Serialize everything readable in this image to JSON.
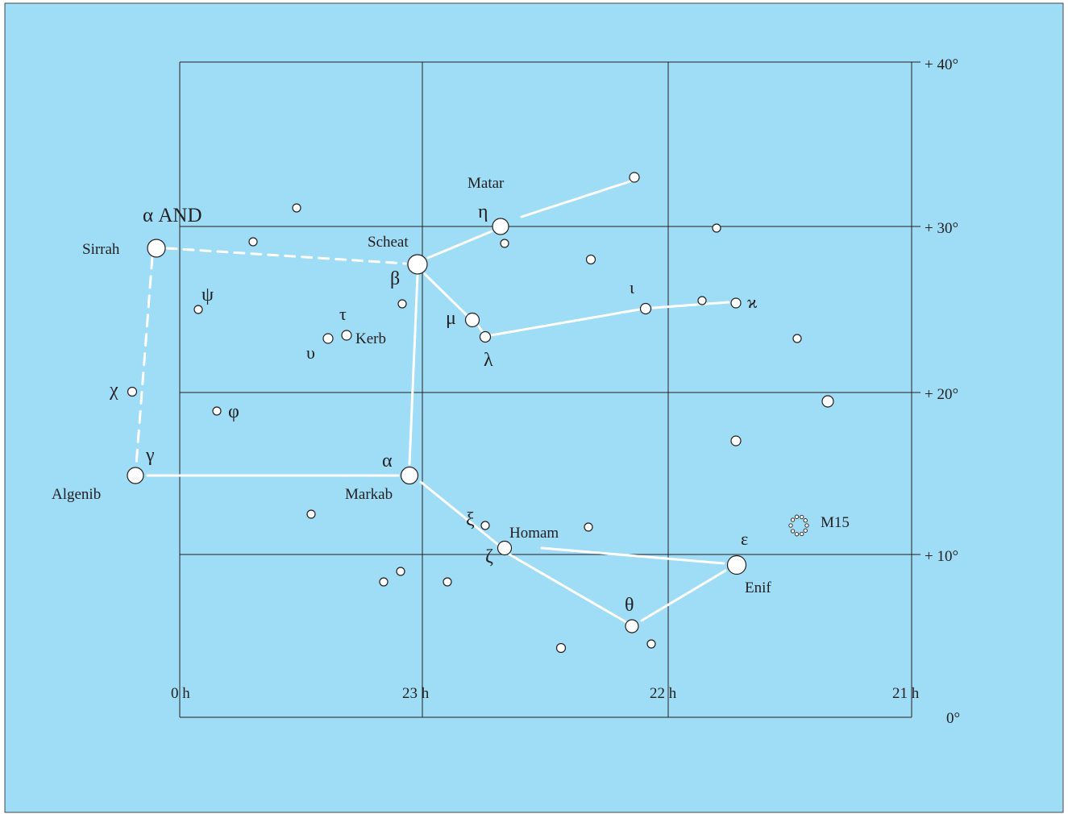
{
  "colors": {
    "sky": "#9fdcf5",
    "grid": "#231f20",
    "line": "#ffffff",
    "star_fill": "#ffffff",
    "star_stroke": "#231f20"
  },
  "axes": {
    "ra_labels": [
      "0 h",
      "23 h",
      "22 h",
      "21 h"
    ],
    "dec_labels": [
      "+ 40°",
      "+ 30°",
      "+ 20°",
      "+ 10°",
      "0°"
    ]
  },
  "labels": {
    "alpha_and": "α AND",
    "sirrah": "Sirrah",
    "scheat": "Scheat",
    "matar": "Matar",
    "eta": "η",
    "beta": "β",
    "psi": "ψ",
    "tau": "τ",
    "kerb": "Kerb",
    "upsilon": "υ",
    "mu": "μ",
    "lambda": "λ",
    "iota": "ι",
    "kappa": "ϰ",
    "chi": "χ",
    "phi": "φ",
    "gamma": "γ",
    "algenib": "Algenib",
    "alpha": "α",
    "markab": "Markab",
    "xi": "ξ",
    "homam": "Homam",
    "zeta": "ζ",
    "epsilon": "ε",
    "enif": "Enif",
    "theta": "θ",
    "m15": "M15"
  },
  "legend_icons": [
    "globular-cluster-icon"
  ]
}
